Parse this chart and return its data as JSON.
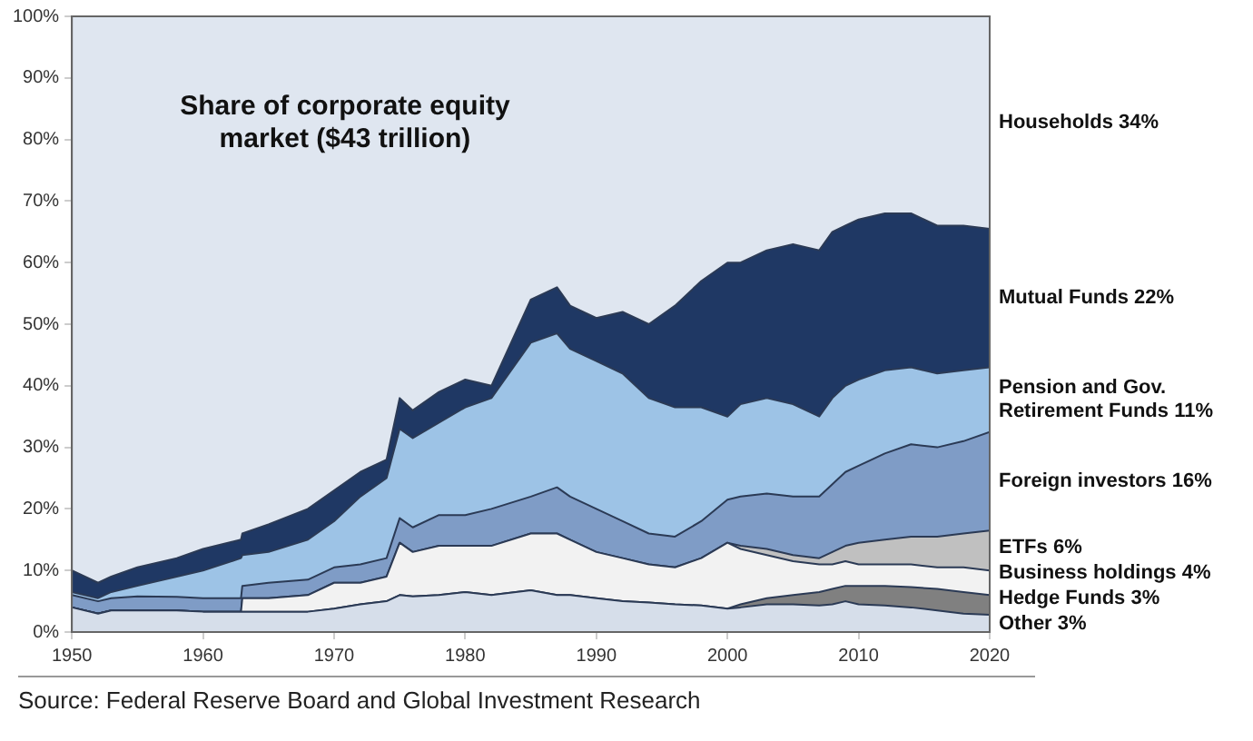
{
  "chart_data": {
    "type": "area",
    "stacked": true,
    "title": "Share of corporate equity market ($43 trillion)",
    "x": [
      1950,
      1952,
      1953,
      1955,
      1958,
      1960,
      1962.9,
      1963,
      1965,
      1968,
      1970,
      1972,
      1974,
      1975,
      1976,
      1978,
      1980,
      1982,
      1985,
      1987,
      1988,
      1990,
      1992,
      1994,
      1996,
      1998,
      2000,
      2001,
      2003,
      2005,
      2007,
      2008,
      2009,
      2010,
      2012,
      2014,
      2016,
      2018,
      2020
    ],
    "series": [
      {
        "name": "Other 3%",
        "color": "#d6deea",
        "values": [
          4,
          3,
          3.5,
          3.5,
          3.5,
          3.3,
          3.3,
          3.3,
          3.3,
          3.3,
          3.8,
          4.5,
          5,
          6,
          5.8,
          6,
          6.5,
          6,
          6.8,
          6,
          6,
          5.5,
          5,
          4.8,
          4.5,
          4.3,
          3.8,
          4,
          4.5,
          4.5,
          4.3,
          4.5,
          5,
          4.5,
          4.3,
          4,
          3.5,
          3,
          2.8
        ]
      },
      {
        "name": "Hedge Funds 3%",
        "color": "#808080",
        "values": [
          0,
          0,
          0,
          0,
          0,
          0,
          0,
          0,
          0,
          0,
          0,
          0,
          0,
          0,
          0,
          0,
          0,
          0,
          0,
          0,
          0,
          0,
          0,
          0,
          0,
          0,
          0,
          0.5,
          1,
          1.5,
          2.2,
          2.5,
          2.5,
          3,
          3.2,
          3.3,
          3.5,
          3.5,
          3.2
        ]
      },
      {
        "name": "Business holdings 4%",
        "color": "#f2f2f2",
        "values": [
          0,
          0,
          0,
          0,
          0,
          0,
          0,
          2.2,
          2.2,
          2.7,
          4.2,
          3.5,
          4,
          8.5,
          7.2,
          8,
          7.5,
          8,
          9.2,
          10,
          9,
          7.5,
          7,
          6.2,
          6,
          7.7,
          10.7,
          9,
          7,
          5.5,
          4.5,
          4,
          4,
          3.5,
          3.5,
          3.7,
          3.5,
          4,
          4
        ]
      },
      {
        "name": "ETFs 6%",
        "color": "#c0c0c0",
        "values": [
          0,
          0,
          0,
          0,
          0,
          0,
          0,
          0,
          0,
          0,
          0,
          0,
          0,
          0,
          0,
          0,
          0,
          0,
          0,
          0,
          0,
          0,
          0,
          0,
          0,
          0,
          0,
          0.5,
          1,
          1,
          1,
          2,
          2.5,
          3.5,
          4,
          4.5,
          5,
          5.5,
          6.5
        ]
      },
      {
        "name": "Foreign investors 16%",
        "color": "#7f9cc6",
        "values": [
          2,
          2,
          2,
          2.3,
          2.2,
          2.2,
          2.2,
          2,
          2.5,
          2.5,
          2.5,
          3,
          3,
          4,
          4,
          5,
          5,
          6,
          6,
          7.5,
          7,
          7,
          6,
          5,
          5,
          6,
          7,
          8,
          9,
          9.5,
          10,
          11,
          12,
          12.5,
          14,
          15,
          14.5,
          15,
          16
        ]
      },
      {
        "name": "Pension and Gov. Retirement Funds 11%",
        "color": "#9dc3e6",
        "values": [
          0.5,
          0.5,
          1,
          1.7,
          3.3,
          4.5,
          6.5,
          5,
          5,
          6.5,
          7.5,
          11,
          13,
          14.5,
          14.5,
          15,
          17.5,
          18,
          25,
          25,
          24,
          24,
          24,
          22,
          21,
          18.5,
          13.5,
          15,
          15.5,
          15,
          13,
          14,
          14,
          14,
          13.5,
          12.5,
          12,
          11.5,
          10.5
        ]
      },
      {
        "name": "Mutual Funds 22%",
        "color": "#1f3864",
        "values": [
          3.5,
          2.5,
          2.5,
          3,
          3,
          3.5,
          3,
          3.5,
          4.5,
          5,
          5,
          4,
          3,
          5,
          4.5,
          5,
          4.5,
          2,
          7,
          7.5,
          7,
          7,
          10,
          12,
          16.5,
          20.5,
          25,
          23,
          24,
          26,
          27,
          27,
          26,
          26,
          25.5,
          25,
          24,
          23.5,
          22.5
        ]
      },
      {
        "name": "Households 34%",
        "color": "#dfe6f0",
        "values": [
          90,
          92,
          91,
          89.5,
          88,
          86.5,
          85,
          84,
          82.5,
          80,
          77,
          74,
          72,
          62,
          64,
          61,
          59,
          60,
          46,
          44,
          47,
          49,
          48,
          50,
          47,
          43,
          40,
          40,
          38,
          37,
          38,
          35,
          34,
          33,
          32,
          32,
          34,
          34,
          34.5
        ]
      }
    ],
    "xlim": [
      1950,
      2020
    ],
    "xticks": [
      1950,
      1960,
      1970,
      1980,
      1990,
      2000,
      2010,
      2020
    ],
    "ylim": [
      0,
      100
    ],
    "yticks": [
      {
        "value": 0,
        "label": "0%"
      },
      {
        "value": 10,
        "label": "10%"
      },
      {
        "value": 20,
        "label": "20%"
      },
      {
        "value": 30,
        "label": "30%"
      },
      {
        "value": 40,
        "label": "40%"
      },
      {
        "value": 50,
        "label": "50%"
      },
      {
        "value": 60,
        "label": "60%"
      },
      {
        "value": 70,
        "label": "70%"
      },
      {
        "value": 80,
        "label": "80%"
      },
      {
        "value": 90,
        "label": "90%"
      },
      {
        "value": 100,
        "label": "100%"
      }
    ],
    "legend": false,
    "annotations": [
      "Source: Federal Reserve Board and Global Investment Research"
    ]
  }
}
